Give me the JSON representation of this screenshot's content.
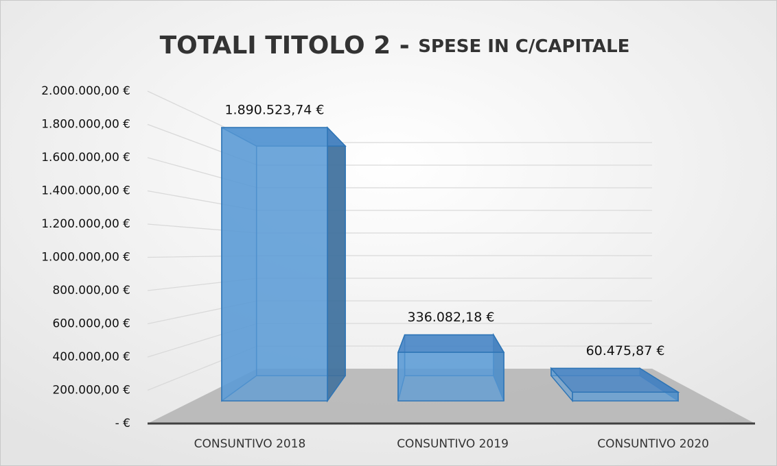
{
  "chart_data": {
    "type": "bar3d",
    "title": "TOTALI TITOLO 2 -",
    "subtitle": "SPESE IN C/CAPITALE",
    "categories": [
      "CONSUNTIVO 2018",
      "CONSUNTIVO 2019",
      "CONSUNTIVO 2020"
    ],
    "values": [
      1890523.74,
      336082.18,
      60475.87
    ],
    "value_labels": [
      "1.890.523,74 €",
      "336.082,18 €",
      "60.475,87 €"
    ],
    "color": "#5b9bd5",
    "ylim": [
      0,
      2000000
    ],
    "yticks": [
      {
        "value": 0,
        "label": "-   €"
      },
      {
        "value": 200000,
        "label": "200.000,00 €"
      },
      {
        "value": 400000,
        "label": "400.000,00 €"
      },
      {
        "value": 600000,
        "label": "600.000,00 €"
      },
      {
        "value": 800000,
        "label": "800.000,00 €"
      },
      {
        "value": 1000000,
        "label": "1.000.000,00 €"
      },
      {
        "value": 1200000,
        "label": "1.200.000,00 €"
      },
      {
        "value": 1400000,
        "label": "1.400.000,00 €"
      },
      {
        "value": 1600000,
        "label": "1.600.000,00 €"
      },
      {
        "value": 1800000,
        "label": "1.800.000,00 €"
      },
      {
        "value": 2000000,
        "label": "2.000.000,00 €"
      }
    ],
    "grid": true
  }
}
